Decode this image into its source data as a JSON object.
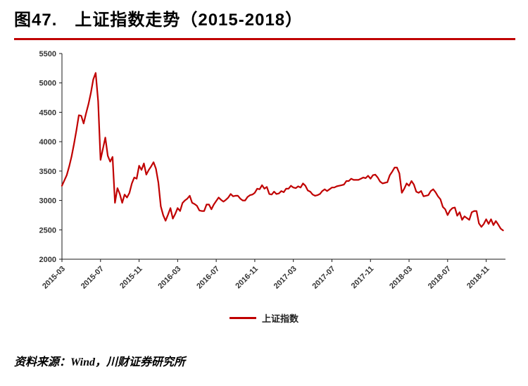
{
  "header": {
    "title": "图47.　上证指数走势（2015-2018）"
  },
  "legend": {
    "label": "上证指数"
  },
  "footer": {
    "source": "资料来源：Wind，川财证券研究所"
  },
  "colors": {
    "line": "#c00000",
    "title_rule": "#c00000",
    "axis": "#1a1a1a",
    "tick_text": "#333333"
  },
  "chart_data": {
    "type": "line",
    "title": "上证指数走势（2015-2018）",
    "series_name": "上证指数",
    "ylabel": "",
    "xlabel": "",
    "ylim": [
      2000,
      5500
    ],
    "yticks": [
      2000,
      2500,
      3000,
      3500,
      4000,
      4500,
      5000,
      5500
    ],
    "xticks": [
      "2015-03",
      "2015-07",
      "2015-11",
      "2016-03",
      "2016-07",
      "2016-11",
      "2017-03",
      "2017-07",
      "2017-11",
      "2018-03",
      "2018-07",
      "2018-11"
    ],
    "xtick_months": [
      0,
      4,
      8,
      12,
      16,
      20,
      24,
      28,
      32,
      36,
      40,
      44
    ],
    "x_range": 46,
    "month_step": 0.25,
    "grid": false,
    "legend_position": "bottom-center",
    "values": [
      3250,
      3340,
      3430,
      3580,
      3750,
      3960,
      4190,
      4450,
      4440,
      4310,
      4480,
      4640,
      4830,
      5060,
      5170,
      4690,
      3690,
      3880,
      4070,
      3760,
      3660,
      3740,
      2960,
      3210,
      3110,
      2960,
      3100,
      3050,
      3130,
      3290,
      3390,
      3370,
      3590,
      3520,
      3630,
      3440,
      3520,
      3580,
      3650,
      3540,
      3300,
      2900,
      2750,
      2655,
      2760,
      2870,
      2690,
      2770,
      2870,
      2820,
      2955,
      3000,
      3030,
      3080,
      2960,
      2940,
      2910,
      2830,
      2820,
      2820,
      2930,
      2930,
      2850,
      2930,
      2990,
      3050,
      3010,
      2980,
      3010,
      3050,
      3110,
      3070,
      3080,
      3080,
      3030,
      3000,
      3000,
      3060,
      3090,
      3100,
      3130,
      3200,
      3190,
      3260,
      3200,
      3230,
      3110,
      3100,
      3150,
      3110,
      3120,
      3160,
      3140,
      3200,
      3200,
      3250,
      3220,
      3210,
      3240,
      3220,
      3290,
      3250,
      3170,
      3150,
      3100,
      3080,
      3090,
      3110,
      3160,
      3190,
      3160,
      3190,
      3220,
      3220,
      3240,
      3250,
      3260,
      3270,
      3330,
      3330,
      3370,
      3350,
      3350,
      3350,
      3370,
      3390,
      3380,
      3420,
      3370,
      3430,
      3440,
      3390,
      3320,
      3290,
      3300,
      3310,
      3430,
      3490,
      3560,
      3560,
      3460,
      3130,
      3200,
      3290,
      3250,
      3330,
      3270,
      3150,
      3130,
      3160,
      3070,
      3080,
      3090,
      3160,
      3190,
      3140,
      3070,
      3020,
      2890,
      2850,
      2750,
      2830,
      2870,
      2880,
      2740,
      2800,
      2670,
      2730,
      2700,
      2670,
      2800,
      2820,
      2820,
      2610,
      2550,
      2600,
      2680,
      2600,
      2680,
      2580,
      2650,
      2590,
      2520,
      2490
    ]
  }
}
